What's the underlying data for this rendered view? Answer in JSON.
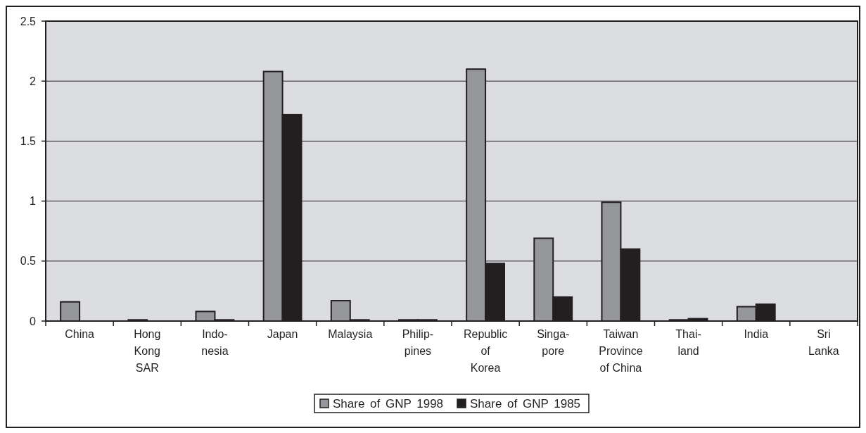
{
  "chart_data": {
    "type": "bar",
    "categories": [
      "China",
      "Hong\nKong\nSAR",
      "Indo-\nnesia",
      "Japan",
      "Malaysia",
      "Philip-\npines",
      "Republic\nof\nKorea",
      "Singa-\npore",
      "Taiwan\nProvince\nof China",
      "Thai-\nland",
      "India",
      "Sri\nLanka"
    ],
    "series": [
      {
        "name": "Share of GNP 1998",
        "color": "#96979b",
        "values": [
          0.16,
          0.01,
          0.08,
          2.08,
          0.17,
          0.01,
          2.1,
          0.69,
          0.99,
          0.01,
          0.12,
          0
        ]
      },
      {
        "name": "Share of GNP 1985",
        "color": "#231f20",
        "values": [
          0,
          0,
          0.01,
          1.72,
          0.01,
          0.01,
          0.48,
          0.2,
          0.6,
          0.02,
          0.14,
          0
        ]
      }
    ],
    "ylim": [
      0,
      2.5
    ],
    "yticks": [
      0,
      0.5,
      1,
      1.5,
      2,
      2.5
    ],
    "grid": "y",
    "legend": "bottom"
  }
}
